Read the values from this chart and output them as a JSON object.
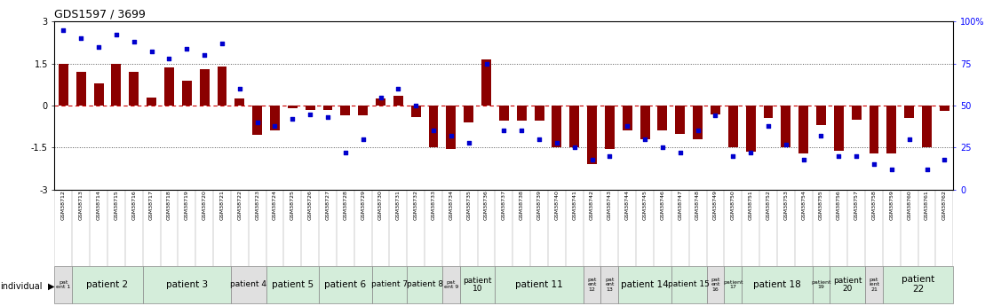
{
  "title": "GDS1597 / 3699",
  "samples": [
    "GSM38712",
    "GSM38713",
    "GSM38714",
    "GSM38715",
    "GSM38716",
    "GSM38717",
    "GSM38718",
    "GSM38719",
    "GSM38720",
    "GSM38721",
    "GSM38722",
    "GSM38723",
    "GSM38724",
    "GSM38725",
    "GSM38726",
    "GSM38727",
    "GSM38728",
    "GSM38729",
    "GSM38730",
    "GSM38731",
    "GSM38732",
    "GSM38733",
    "GSM38734",
    "GSM38735",
    "GSM38736",
    "GSM38737",
    "GSM38738",
    "GSM38739",
    "GSM38740",
    "GSM38741",
    "GSM38742",
    "GSM38743",
    "GSM38744",
    "GSM38745",
    "GSM38746",
    "GSM38747",
    "GSM38748",
    "GSM38749",
    "GSM38750",
    "GSM38751",
    "GSM38752",
    "GSM38753",
    "GSM38754",
    "GSM38755",
    "GSM38756",
    "GSM38757",
    "GSM38758",
    "GSM38759",
    "GSM38760",
    "GSM38761",
    "GSM38762"
  ],
  "log2_ratio": [
    1.5,
    1.2,
    0.8,
    1.5,
    1.2,
    0.3,
    1.35,
    0.9,
    1.3,
    1.4,
    0.25,
    -1.05,
    -0.9,
    -0.1,
    -0.15,
    -0.15,
    -0.35,
    -0.35,
    0.25,
    0.35,
    -0.4,
    -1.5,
    -1.55,
    -0.6,
    1.65,
    -0.55,
    -0.55,
    -0.55,
    -1.5,
    -1.5,
    -2.1,
    -1.55,
    -0.9,
    -1.2,
    -0.9,
    -1.0,
    -1.2,
    -0.3,
    -1.5,
    -1.65,
    -0.45,
    -1.5,
    -1.7,
    -0.7,
    -1.6,
    -0.5,
    -1.7,
    -1.7,
    -0.45,
    -1.5,
    -0.2
  ],
  "percentile": [
    95,
    90,
    85,
    92,
    88,
    82,
    78,
    84,
    80,
    87,
    60,
    40,
    38,
    42,
    45,
    43,
    22,
    30,
    55,
    60,
    50,
    35,
    32,
    28,
    75,
    35,
    35,
    30,
    28,
    25,
    18,
    20,
    38,
    30,
    25,
    22,
    35,
    44,
    20,
    22,
    38,
    27,
    18,
    32,
    20,
    20,
    15,
    12,
    30,
    12,
    18
  ],
  "patients": [
    {
      "label": "pat\nent 1",
      "start": 0,
      "end": 1,
      "color": "#e0e0e0"
    },
    {
      "label": "patient 2",
      "start": 1,
      "end": 5,
      "color": "#d4edda"
    },
    {
      "label": "patient 3",
      "start": 5,
      "end": 10,
      "color": "#d4edda"
    },
    {
      "label": "patient 4",
      "start": 10,
      "end": 12,
      "color": "#e0e0e0"
    },
    {
      "label": "patient 5",
      "start": 12,
      "end": 15,
      "color": "#d4edda"
    },
    {
      "label": "patient 6",
      "start": 15,
      "end": 18,
      "color": "#d4edda"
    },
    {
      "label": "patient 7",
      "start": 18,
      "end": 20,
      "color": "#d4edda"
    },
    {
      "label": "patient 8",
      "start": 20,
      "end": 22,
      "color": "#d4edda"
    },
    {
      "label": "pat\nent 9",
      "start": 22,
      "end": 23,
      "color": "#e0e0e0"
    },
    {
      "label": "patient\n10",
      "start": 23,
      "end": 25,
      "color": "#d4edda"
    },
    {
      "label": "patient 11",
      "start": 25,
      "end": 30,
      "color": "#d4edda"
    },
    {
      "label": "pat\nent\n12",
      "start": 30,
      "end": 31,
      "color": "#e0e0e0"
    },
    {
      "label": "pat\nent\n13",
      "start": 31,
      "end": 32,
      "color": "#e0e0e0"
    },
    {
      "label": "patient 14",
      "start": 32,
      "end": 35,
      "color": "#d4edda"
    },
    {
      "label": "patient 15",
      "start": 35,
      "end": 37,
      "color": "#d4edda"
    },
    {
      "label": "pat\nent\n16",
      "start": 37,
      "end": 38,
      "color": "#e0e0e0"
    },
    {
      "label": "patient\n17",
      "start": 38,
      "end": 39,
      "color": "#d4edda"
    },
    {
      "label": "patient 18",
      "start": 39,
      "end": 43,
      "color": "#d4edda"
    },
    {
      "label": "patient\n19",
      "start": 43,
      "end": 44,
      "color": "#d4edda"
    },
    {
      "label": "patient\n20",
      "start": 44,
      "end": 46,
      "color": "#d4edda"
    },
    {
      "label": "pat\nient\n21",
      "start": 46,
      "end": 47,
      "color": "#e0e0e0"
    },
    {
      "label": "patient\n22",
      "start": 47,
      "end": 51,
      "color": "#d4edda"
    }
  ],
  "ylim": [
    -3,
    3
  ],
  "bar_color": "#8B0000",
  "scatter_color": "#0000CD",
  "hline_color": "#CC0000",
  "dotted_color": "#555555",
  "background_color": "#ffffff"
}
